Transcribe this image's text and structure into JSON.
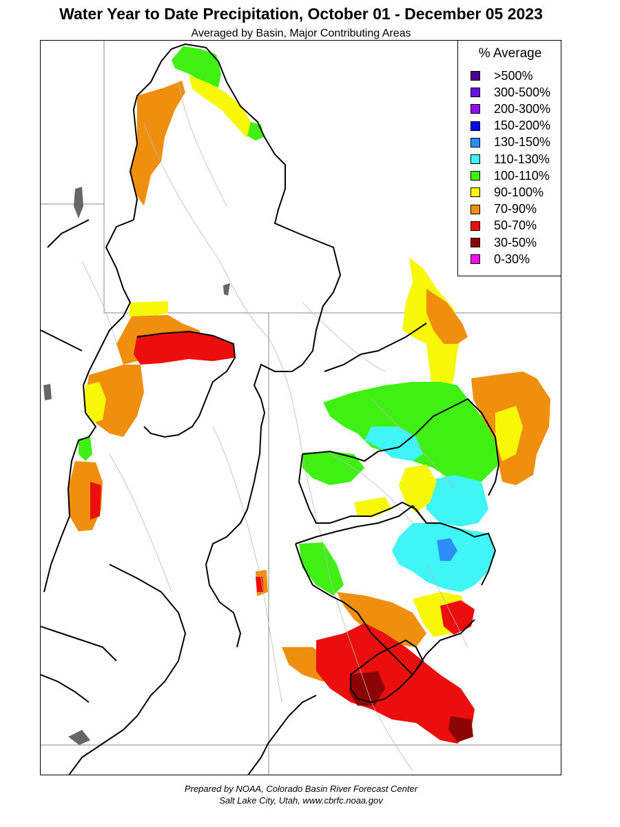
{
  "title": "Water Year to Date Precipitation, October 01  - December 05 2023",
  "subtitle": "Averaged by Basin, Major Contributing Areas",
  "legend": {
    "title": "% Average",
    "items": [
      {
        "label": ">500%",
        "color": "#4b0092"
      },
      {
        "label": "300-500%",
        "color": "#6a10e6"
      },
      {
        "label": "200-300%",
        "color": "#8f0cf5"
      },
      {
        "label": "150-200%",
        "color": "#0a0af8"
      },
      {
        "label": "130-150%",
        "color": "#2c8ef8"
      },
      {
        "label": "110-130%",
        "color": "#3ff5f5"
      },
      {
        "label": "100-110%",
        "color": "#41f013"
      },
      {
        "label": "90-100%",
        "color": "#f7f708"
      },
      {
        "label": "70-90%",
        "color": "#f08f0e"
      },
      {
        "label": "50-70%",
        "color": "#ec0d0d"
      },
      {
        "label": "30-50%",
        "color": "#8d0303"
      },
      {
        "label": "0-30%",
        "color": "#f20ff2"
      }
    ]
  },
  "credits": {
    "line1": "Prepared by NOAA, Colorado Basin River Forecast Center",
    "line2": "Salt Lake City, Utah, www.cbrfc.noaa.gov"
  }
}
